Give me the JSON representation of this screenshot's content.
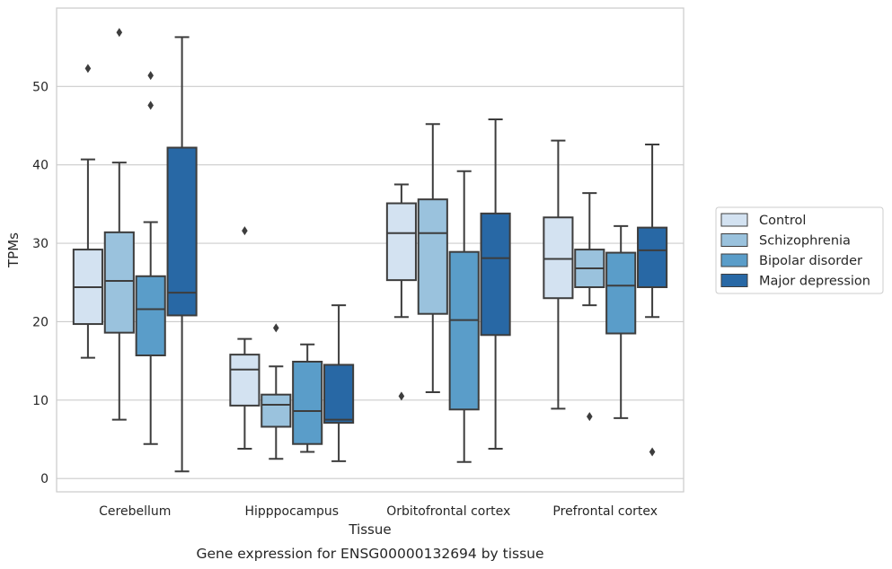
{
  "caption": "Gene expression for ENSG00000132694 by tissue",
  "chart_data": {
    "type": "box",
    "xlabel": "Tissue",
    "ylabel": "TPMs",
    "ylim": [
      -1.7,
      60
    ],
    "yticks": [
      0,
      10,
      20,
      30,
      40,
      50
    ],
    "grid": "horizontal",
    "legend_position": "right",
    "categories": [
      "Cerebellum",
      "Hipppocampus",
      "Orbitofrontal cortex",
      "Prefrontal cortex"
    ],
    "series": [
      {
        "name": "Control",
        "color": "#d3e2f1",
        "boxes": [
          {
            "q1": 19.7,
            "median": 24.4,
            "q3": 29.2,
            "whisker_low": 15.4,
            "whisker_high": 40.7,
            "outliers": [
              52.3
            ]
          },
          {
            "q1": 9.3,
            "median": 13.9,
            "q3": 15.8,
            "whisker_low": 3.8,
            "whisker_high": 17.8,
            "outliers": [
              31.6
            ]
          },
          {
            "q1": 25.3,
            "median": 31.3,
            "q3": 35.1,
            "whisker_low": 20.6,
            "whisker_high": 37.5,
            "outliers": [
              10.5
            ]
          },
          {
            "q1": 23.0,
            "median": 28.0,
            "q3": 33.3,
            "whisker_low": 8.9,
            "whisker_high": 43.1,
            "outliers": []
          }
        ]
      },
      {
        "name": "Schizophrenia",
        "color": "#9ac2dd",
        "boxes": [
          {
            "q1": 18.6,
            "median": 25.2,
            "q3": 31.4,
            "whisker_low": 7.5,
            "whisker_high": 40.3,
            "outliers": [
              56.9
            ]
          },
          {
            "q1": 6.6,
            "median": 9.4,
            "q3": 10.7,
            "whisker_low": 2.5,
            "whisker_high": 14.3,
            "outliers": [
              19.2
            ]
          },
          {
            "q1": 21.0,
            "median": 31.3,
            "q3": 35.6,
            "whisker_low": 11.0,
            "whisker_high": 45.2,
            "outliers": []
          },
          {
            "q1": 24.4,
            "median": 26.8,
            "q3": 29.2,
            "whisker_low": 22.1,
            "whisker_high": 36.4,
            "outliers": [
              7.9
            ]
          }
        ]
      },
      {
        "name": "Bipolar disorder",
        "color": "#5a9dc9",
        "boxes": [
          {
            "q1": 15.7,
            "median": 21.6,
            "q3": 25.8,
            "whisker_low": 4.4,
            "whisker_high": 32.7,
            "outliers": [
              51.4,
              47.6
            ]
          },
          {
            "q1": 4.4,
            "median": 8.6,
            "q3": 14.9,
            "whisker_low": 3.4,
            "whisker_high": 17.1,
            "outliers": []
          },
          {
            "q1": 8.8,
            "median": 20.2,
            "q3": 28.9,
            "whisker_low": 2.1,
            "whisker_high": 39.2,
            "outliers": []
          },
          {
            "q1": 18.5,
            "median": 24.6,
            "q3": 28.8,
            "whisker_low": 7.7,
            "whisker_high": 32.2,
            "outliers": []
          }
        ]
      },
      {
        "name": "Major depression",
        "color": "#2868a5",
        "boxes": [
          {
            "q1": 20.8,
            "median": 23.7,
            "q3": 42.2,
            "whisker_low": 0.9,
            "whisker_high": 56.3,
            "outliers": []
          },
          {
            "q1": 7.1,
            "median": 7.5,
            "q3": 14.5,
            "whisker_low": 2.2,
            "whisker_high": 22.1,
            "outliers": []
          },
          {
            "q1": 18.3,
            "median": 28.1,
            "q3": 33.8,
            "whisker_low": 3.8,
            "whisker_high": 45.8,
            "outliers": []
          },
          {
            "q1": 24.4,
            "median": 29.1,
            "q3": 32.0,
            "whisker_low": 20.6,
            "whisker_high": 42.6,
            "outliers": [
              3.4
            ]
          }
        ]
      }
    ]
  }
}
